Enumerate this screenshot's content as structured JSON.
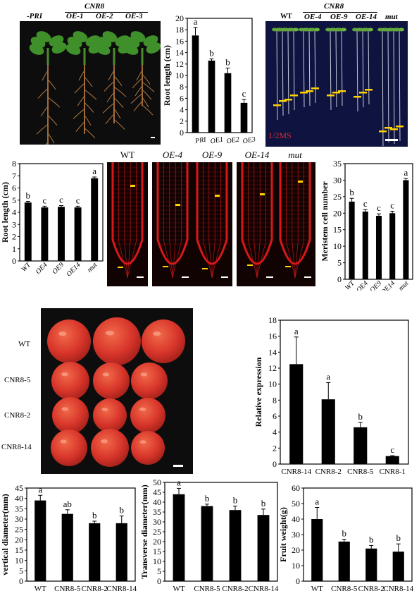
{
  "colors": {
    "bar": "#000000",
    "photo_bg": "#0d0d0d",
    "root_bg": "#0e1340",
    "confocal_red": "#d81818",
    "tomato": "#d8352a",
    "marker_yellow": "#ffd200",
    "scale_white": "#ffffff"
  },
  "panel_a_photo": {
    "gene": "CNR8",
    "labels": [
      "-PRI",
      "OE-1",
      "OE-2",
      "OE-3"
    ]
  },
  "panel_c_photo": {
    "gene": "CNR8",
    "labels": [
      "WT",
      "OE-4",
      "OE-9",
      "OE-14",
      "mut"
    ],
    "medium": "1/2MS"
  },
  "confocal": {
    "labels": [
      "WT",
      "OE-4",
      "OE-9",
      "OE-14",
      "mut"
    ]
  },
  "fruit_photo": {
    "row_labels": [
      "WT",
      "CNR8-5",
      "CNR8-2",
      "CNR8-14"
    ]
  },
  "chart_data": [
    {
      "id": "root-length-pri",
      "type": "bar",
      "categories": [
        "PRI",
        "OE1",
        "OE2",
        "OE3"
      ],
      "values": [
        17.0,
        12.6,
        10.4,
        5.2
      ],
      "errors": [
        1.4,
        0.3,
        0.9,
        0.6
      ],
      "letters": [
        "a",
        "b",
        "b",
        "c"
      ],
      "ylabel": "Root length (cm)",
      "ylim": [
        0,
        20
      ],
      "yticks": [
        0,
        2,
        4,
        6,
        8,
        10,
        12,
        14,
        16,
        18,
        20
      ]
    },
    {
      "id": "root-length-oe",
      "type": "bar",
      "categories": [
        "WT",
        "OE4",
        "OE9",
        "OE14",
        "mut"
      ],
      "values": [
        4.8,
        4.4,
        4.45,
        4.4,
        6.8
      ],
      "errors": [
        0.1,
        0.1,
        0.1,
        0.1,
        0.1
      ],
      "letters": [
        "b",
        "c",
        "c",
        "c",
        "a"
      ],
      "ylabel": "Root length (cm)",
      "ylim": [
        0,
        8
      ],
      "yticks": [
        0,
        1,
        2,
        3,
        4,
        5,
        6,
        7,
        8
      ]
    },
    {
      "id": "meristem-cell-number",
      "type": "bar",
      "categories": [
        "WT",
        "OE4",
        "OE9",
        "OE14",
        "mut"
      ],
      "values": [
        23.5,
        20.5,
        19.2,
        20.0,
        30.0
      ],
      "errors": [
        1.0,
        0.6,
        0.6,
        0.6,
        0.5
      ],
      "letters": [
        "b",
        "c",
        "c",
        "c",
        "a"
      ],
      "ylabel": "Meristem cell number",
      "ylim": [
        0,
        35
      ],
      "yticks": [
        0,
        5,
        10,
        15,
        20,
        25,
        30,
        35
      ]
    },
    {
      "id": "relative-expression",
      "type": "bar",
      "categories": [
        "CNR8-14",
        "CNR8-2",
        "CNR8-5",
        "CNR8-1"
      ],
      "values": [
        12.5,
        8.1,
        4.6,
        1.0
      ],
      "errors": [
        3.4,
        2.1,
        0.6,
        0.05
      ],
      "letters": [
        "a",
        "a",
        "b",
        "c"
      ],
      "ylabel": "Relative expression",
      "ylim": [
        0,
        18
      ],
      "yticks": [
        0,
        2,
        4,
        6,
        8,
        10,
        12,
        14,
        16,
        18
      ]
    },
    {
      "id": "vertical-diameter",
      "type": "bar",
      "categories": [
        "WT",
        "CNR8-5",
        "CNR8-2",
        "CNR8-14"
      ],
      "values": [
        39,
        32.5,
        28,
        28
      ],
      "errors": [
        2.5,
        2.0,
        1.0,
        3.5
      ],
      "letters": [
        "a",
        "ab",
        "b",
        "b"
      ],
      "ylabel": "vertical diameter(mm)",
      "ylim": [
        0,
        45
      ],
      "yticks": [
        0,
        5,
        10,
        15,
        20,
        25,
        30,
        35,
        40,
        45
      ]
    },
    {
      "id": "transverse-diameter",
      "type": "bar",
      "categories": [
        "WT",
        "CNR8-5",
        "CNR8-2",
        "CNR8-14"
      ],
      "values": [
        44,
        38,
        36,
        33.5
      ],
      "errors": [
        3.0,
        1.0,
        2.0,
        3.0
      ],
      "letters": [
        "a",
        "b",
        "b",
        "b"
      ],
      "ylabel": "Transverse diameter(mm)",
      "ylim": [
        0,
        50
      ],
      "yticks": [
        0,
        5,
        10,
        15,
        20,
        25,
        30,
        35,
        40,
        45,
        50
      ]
    },
    {
      "id": "fruit-weight",
      "type": "bar",
      "categories": [
        "WT",
        "CNR8-5",
        "CNR8-2",
        "CNR8-14"
      ],
      "values": [
        40,
        25.5,
        21,
        19
      ],
      "errors": [
        7.5,
        1.5,
        2.0,
        5.0
      ],
      "letters": [
        "a",
        "b",
        "b",
        "b"
      ],
      "ylabel": "Fruit weight(g)",
      "ylim": [
        0,
        60
      ],
      "yticks": [
        0,
        10,
        20,
        30,
        40,
        50,
        60
      ]
    }
  ]
}
